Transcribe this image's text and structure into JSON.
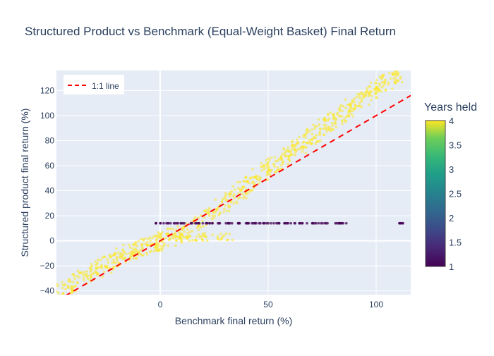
{
  "chart_data": {
    "type": "scatter",
    "title": "Structured Product vs Benchmark (Equal-Weight Basket) Final Return",
    "xlabel": "Benchmark final return (%)",
    "ylabel": "Structured product final return (%)",
    "xlim": [
      -48,
      116
    ],
    "ylim": [
      -43,
      136
    ],
    "x_ticks": [
      0,
      50,
      100
    ],
    "y_ticks": [
      -40,
      -20,
      0,
      20,
      40,
      60,
      80,
      100,
      120
    ],
    "grid": true,
    "legend": {
      "position": "top-left",
      "entries": [
        "1:1 line"
      ]
    },
    "colorbar": {
      "title": "Years held",
      "range": [
        1,
        4
      ],
      "ticks": [
        "1",
        "1.5",
        "2",
        "2.5",
        "3",
        "3.5",
        "4"
      ],
      "colorscale": "viridis"
    },
    "reference_line": {
      "name": "1:1 line",
      "x": [
        -48,
        116
      ],
      "y": [
        -48,
        116
      ],
      "color": "#ff0000",
      "dash": "dash"
    },
    "series": [
      {
        "years_held": 4,
        "color": "#fde725",
        "pattern": "Benchmark up to 0%: product = benchmark with floor near 0; benchmark 0–~35%: product near 0 to low positive; above: product ≈ 1.5×benchmark − 30",
        "x": [
          -46,
          -42,
          -40,
          -36,
          -33,
          -30,
          -28,
          -25,
          -22,
          -20,
          -18,
          -15,
          -12,
          -10,
          -8,
          -5,
          -3,
          -1,
          0,
          2,
          5,
          8,
          10,
          12,
          15,
          18,
          20,
          22,
          25,
          28,
          30,
          32,
          35,
          38,
          40,
          42,
          45,
          48,
          50,
          52,
          55,
          58,
          60,
          62,
          65,
          68,
          70,
          72,
          75,
          78,
          80,
          82,
          85,
          88,
          90,
          92,
          95,
          98,
          100,
          102,
          105,
          108,
          110
        ],
        "y": [
          -40,
          -36,
          -33,
          -30,
          -27,
          -24,
          -22,
          -19,
          -17,
          -15,
          -13,
          -10,
          -8,
          -6,
          -5,
          -3,
          -2,
          -1,
          0,
          1,
          3,
          5,
          7,
          9,
          12,
          15,
          18,
          20,
          24,
          27,
          30,
          33,
          37,
          41,
          44,
          47,
          51,
          55,
          58,
          61,
          64,
          68,
          71,
          74,
          77,
          80,
          84,
          86,
          90,
          94,
          96,
          99,
          102,
          106,
          108,
          111,
          115,
          118,
          121,
          124,
          127,
          130,
          132
        ]
      },
      {
        "years_held": 1,
        "color": "#440154",
        "pattern": "Early redemption: fixed coupon ≈ 14% for benchmark ≥ 0",
        "x": [
          0,
          5,
          10,
          15,
          20,
          25,
          30,
          35,
          40,
          45,
          50,
          55,
          60,
          65,
          70,
          75,
          82,
          84,
          110
        ],
        "y": [
          14,
          14,
          14,
          14,
          14,
          14,
          14,
          14,
          14,
          14,
          14,
          14,
          14,
          14,
          14,
          14,
          14,
          14,
          14
        ]
      }
    ]
  }
}
